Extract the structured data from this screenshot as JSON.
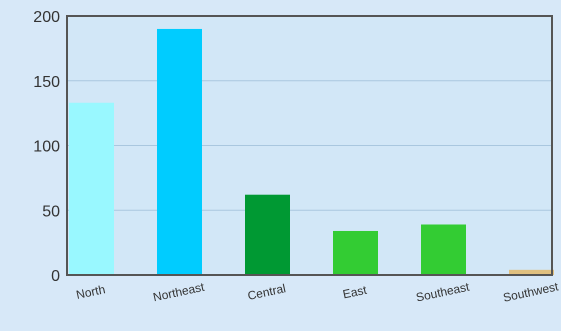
{
  "chart_data": {
    "type": "bar",
    "categories": [
      "North",
      "Northeast",
      "Central",
      "East",
      "Southeast",
      "Southwest"
    ],
    "values": [
      133,
      190,
      62,
      34,
      39,
      4
    ],
    "colors": [
      "#99f8ff",
      "#00ccff",
      "#009933",
      "#33cc33",
      "#33cc33",
      "#e0c080"
    ],
    "ylim": [
      0,
      200
    ],
    "yticks": [
      "0",
      "50",
      "100",
      "150",
      "200"
    ],
    "grid": true,
    "plot_background": "#d2e7f7",
    "grid_color": "#a9c7df",
    "axis_color": "#555555"
  }
}
